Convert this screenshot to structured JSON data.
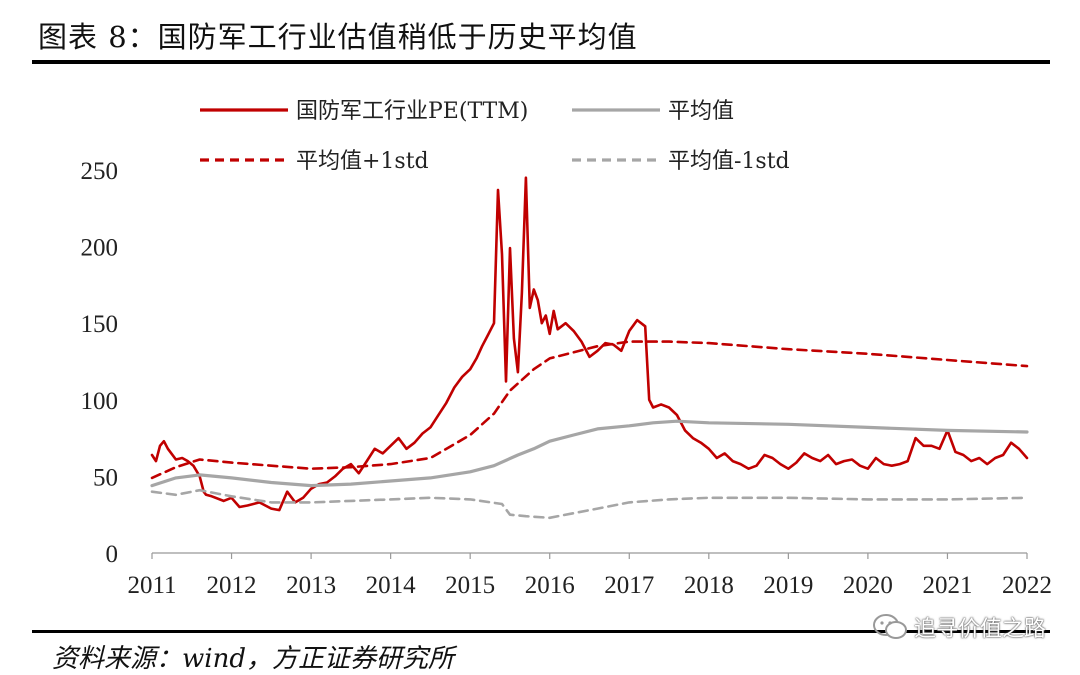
{
  "title": "图表 8：国防军工行业估值稍低于历史平均值",
  "source": "资料来源：wind，方正证券研究所",
  "watermark": "追寻价值之路",
  "colors": {
    "pe": "#c00000",
    "avg": "#a6a6a6",
    "plus": "#c00000",
    "minus": "#a6a6a6"
  },
  "chart_data": {
    "type": "line",
    "title": "",
    "xlabel": "",
    "ylabel": "",
    "ylim": [
      0,
      250
    ],
    "xlim": [
      2011,
      2022
    ],
    "yticks": [
      "0",
      "50",
      "100",
      "150",
      "200",
      "250"
    ],
    "xticks": [
      "2011",
      "2012",
      "2013",
      "2014",
      "2015",
      "2016",
      "2017",
      "2018",
      "2019",
      "2020",
      "2021",
      "2022"
    ],
    "legend_position": "top",
    "series": [
      {
        "name": "国防军工行业PE(TTM)",
        "style": "solid",
        "color": "#c00000",
        "x": [
          2011.0,
          2011.05,
          2011.1,
          2011.15,
          2011.2,
          2011.3,
          2011.38,
          2011.45,
          2011.52,
          2011.6,
          2011.65,
          2011.68,
          2011.75,
          2011.9,
          2012.0,
          2012.1,
          2012.2,
          2012.35,
          2012.5,
          2012.6,
          2012.7,
          2012.8,
          2012.9,
          2013.0,
          2013.1,
          2013.2,
          2013.3,
          2013.4,
          2013.5,
          2013.6,
          2013.7,
          2013.8,
          2013.9,
          2014.0,
          2014.1,
          2014.2,
          2014.3,
          2014.4,
          2014.5,
          2014.6,
          2014.7,
          2014.8,
          2014.9,
          2015.0,
          2015.08,
          2015.15,
          2015.22,
          2015.3,
          2015.35,
          2015.4,
          2015.45,
          2015.5,
          2015.55,
          2015.6,
          2015.65,
          2015.7,
          2015.75,
          2015.8,
          2015.85,
          2015.9,
          2015.95,
          2016.0,
          2016.05,
          2016.1,
          2016.2,
          2016.3,
          2016.4,
          2016.5,
          2016.6,
          2016.7,
          2016.8,
          2016.9,
          2017.0,
          2017.1,
          2017.2,
          2017.25,
          2017.3,
          2017.4,
          2017.5,
          2017.6,
          2017.7,
          2017.8,
          2017.9,
          2018.0,
          2018.1,
          2018.2,
          2018.3,
          2018.4,
          2018.5,
          2018.6,
          2018.7,
          2018.8,
          2018.9,
          2019.0,
          2019.1,
          2019.2,
          2019.3,
          2019.4,
          2019.5,
          2019.6,
          2019.7,
          2019.8,
          2019.9,
          2020.0,
          2020.1,
          2020.2,
          2020.3,
          2020.4,
          2020.5,
          2020.6,
          2020.7,
          2020.8,
          2020.9,
          2021.0,
          2021.1,
          2021.2,
          2021.3,
          2021.4,
          2021.5,
          2021.6,
          2021.7,
          2021.8,
          2021.9,
          2022.0
        ],
        "y": [
          64,
          60,
          70,
          73,
          68,
          61,
          62,
          60,
          57,
          50,
          40,
          38,
          37,
          34,
          36,
          30,
          31,
          33,
          29,
          28,
          40,
          33,
          36,
          42,
          45,
          46,
          50,
          55,
          58,
          52,
          60,
          68,
          65,
          70,
          75,
          68,
          72,
          78,
          82,
          90,
          98,
          108,
          115,
          120,
          127,
          135,
          142,
          150,
          237,
          195,
          112,
          199,
          140,
          118,
          170,
          245,
          160,
          172,
          165,
          150,
          155,
          143,
          158,
          146,
          150,
          145,
          138,
          128,
          132,
          137,
          136,
          132,
          145,
          152,
          148,
          100,
          95,
          97,
          95,
          90,
          80,
          75,
          72,
          68,
          62,
          65,
          60,
          58,
          55,
          57,
          64,
          62,
          58,
          55,
          59,
          65,
          62,
          60,
          64,
          58,
          60,
          61,
          57,
          55,
          62,
          58,
          57,
          58,
          60,
          75,
          70,
          70,
          68,
          80,
          66,
          64,
          60,
          62,
          58,
          62,
          64,
          72,
          68,
          62
        ]
      },
      {
        "name": "平均值",
        "style": "solid",
        "color": "#a6a6a6",
        "x": [
          2011.0,
          2011.3,
          2011.6,
          2012.0,
          2012.5,
          2013.0,
          2013.5,
          2014.0,
          2014.5,
          2015.0,
          2015.3,
          2015.6,
          2015.8,
          2016.0,
          2016.3,
          2016.6,
          2017.0,
          2017.3,
          2017.6,
          2018.0,
          2019.0,
          2020.0,
          2021.0,
          2022.0
        ],
        "y": [
          44,
          49,
          51,
          49,
          46,
          44,
          45,
          47,
          49,
          53,
          57,
          64,
          68,
          73,
          77,
          81,
          83,
          85,
          86,
          85,
          84,
          82,
          80,
          79
        ]
      },
      {
        "name": "平均值+1std",
        "style": "dashed",
        "color": "#c00000",
        "x": [
          2011.0,
          2011.3,
          2011.6,
          2012.0,
          2012.5,
          2013.0,
          2013.5,
          2014.0,
          2014.5,
          2015.0,
          2015.3,
          2015.5,
          2015.8,
          2016.0,
          2016.3,
          2016.6,
          2017.0,
          2017.5,
          2018.0,
          2019.0,
          2020.0,
          2021.0,
          2022.0
        ],
        "y": [
          49,
          56,
          61,
          59,
          57,
          55,
          56,
          58,
          62,
          77,
          91,
          106,
          120,
          127,
          131,
          135,
          138,
          138,
          137,
          133,
          130,
          126,
          122
        ]
      },
      {
        "name": "平均值-1std",
        "style": "dashed",
        "color": "#a6a6a6",
        "x": [
          2011.0,
          2011.3,
          2011.6,
          2012.0,
          2012.5,
          2013.0,
          2013.5,
          2014.0,
          2014.5,
          2015.0,
          2015.4,
          2015.5,
          2015.7,
          2016.0,
          2016.3,
          2016.6,
          2017.0,
          2017.5,
          2018.0,
          2019.0,
          2020.0,
          2021.0,
          2022.0
        ],
        "y": [
          40,
          38,
          41,
          37,
          33,
          33,
          34,
          35,
          36,
          35,
          32,
          25,
          24,
          23,
          26,
          29,
          33,
          35,
          36,
          36,
          35,
          35,
          36
        ]
      }
    ]
  }
}
